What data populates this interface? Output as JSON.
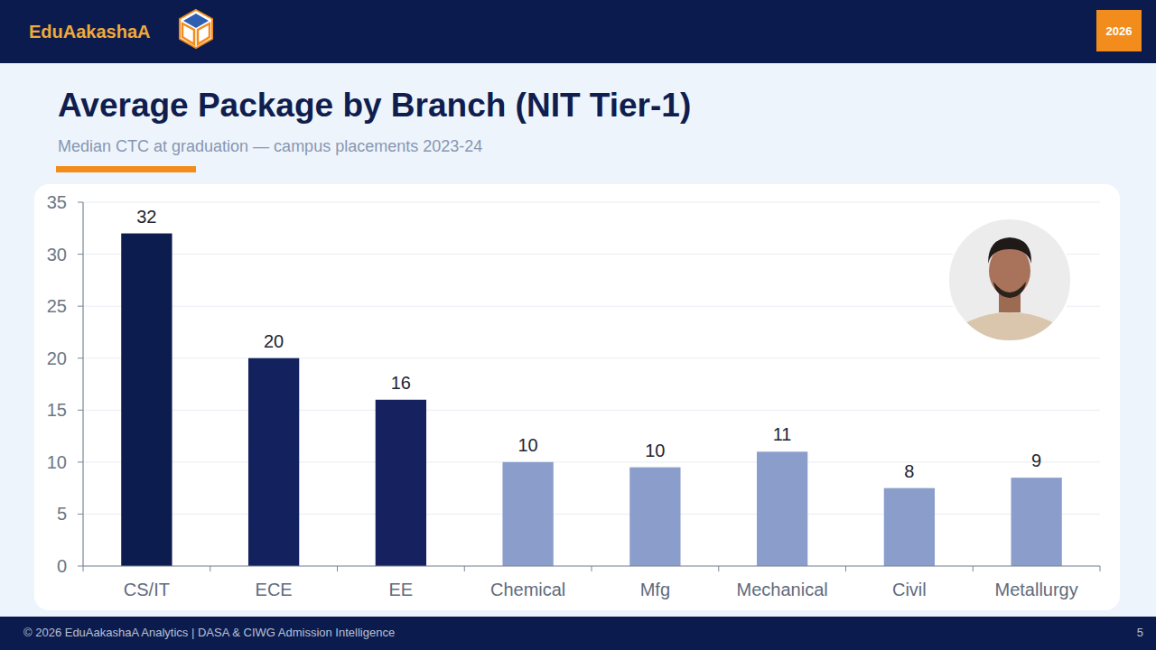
{
  "header": {
    "brand": "EduAakashaA",
    "badge": "2026"
  },
  "chart_data": {
    "type": "bar",
    "title": "Average Package by Branch (NIT Tier-1)",
    "subtitle": "Median CTC at graduation — campus placements 2023-24",
    "categories": [
      "CS/IT",
      "ECE",
      "EE",
      "Chemical",
      "Mfg",
      "Mechanical",
      "Civil",
      "Metallurgy"
    ],
    "values": [
      32,
      20,
      16,
      10,
      9.5,
      11,
      7.5,
      8.5
    ],
    "value_labels": [
      "32",
      "20",
      "16",
      "10",
      "10",
      "11",
      "8",
      "9"
    ],
    "colors": [
      "#0c1c4e",
      "#13215f",
      "#15225f",
      "#8b9dcb",
      "#8b9dcb",
      "#8b9dcb",
      "#8b9dcb",
      "#8b9dcb"
    ],
    "ylim": [
      0,
      35
    ],
    "yticks": [
      0,
      5,
      10,
      15,
      20,
      25,
      30,
      35
    ],
    "grid": true,
    "data_labels": true
  },
  "footer": {
    "text": "© 2026 EduAakashaA Analytics | DASA & CIWG Admission Intelligence",
    "page": 5
  }
}
